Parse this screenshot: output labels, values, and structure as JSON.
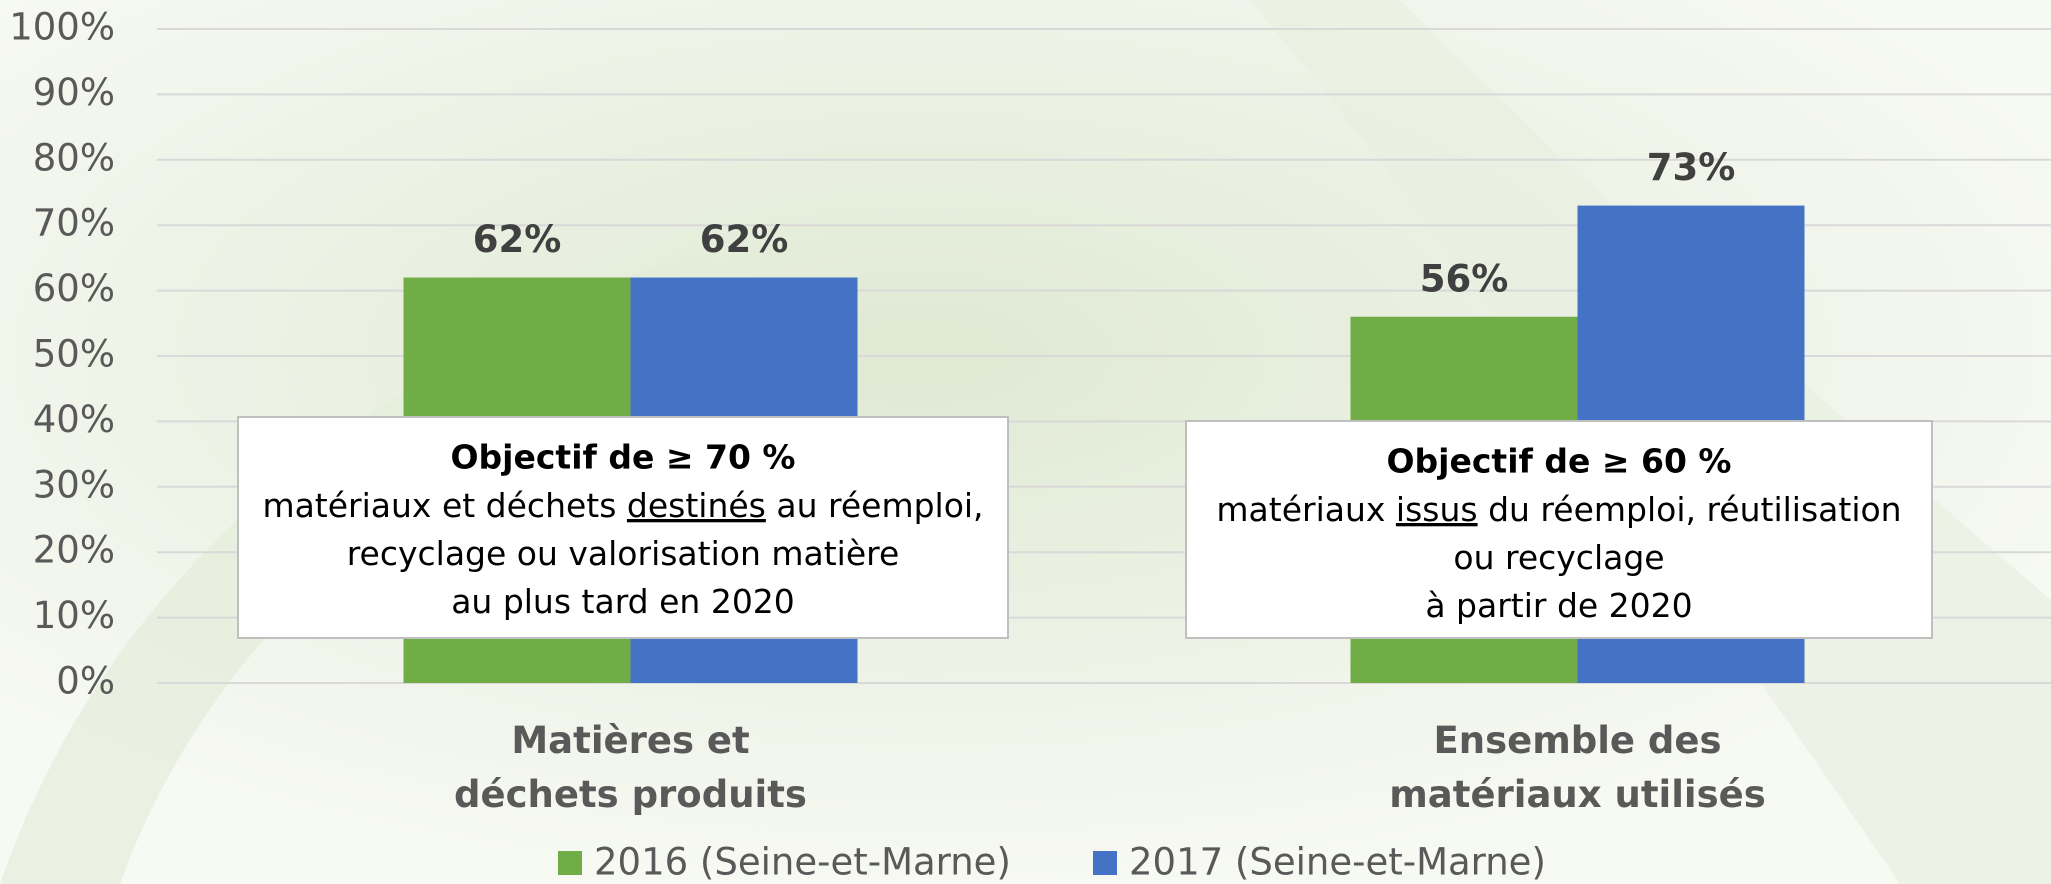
{
  "chart_data": {
    "type": "bar",
    "categories": [
      [
        "Matières et",
        "déchets produits"
      ],
      [
        "Ensemble des",
        "matériaux utilisés"
      ]
    ],
    "series": [
      {
        "name": "2016 (Seine-et-Marne)",
        "color": "#70ad47",
        "values": [
          62,
          56
        ],
        "value_labels": [
          "62%",
          "56%"
        ]
      },
      {
        "name": "2017 (Seine-et-Marne)",
        "color": "#4472c4",
        "values": [
          62,
          73
        ],
        "value_labels": [
          "62%",
          "73%"
        ]
      }
    ],
    "ylim": [
      0,
      100
    ],
    "yticks": [
      {
        "value": 0,
        "label": "0%"
      },
      {
        "value": 10,
        "label": "10%"
      },
      {
        "value": 20,
        "label": "20%"
      },
      {
        "value": 30,
        "label": "30%"
      },
      {
        "value": 40,
        "label": "40%"
      },
      {
        "value": 50,
        "label": "50%"
      },
      {
        "value": 60,
        "label": "60%"
      },
      {
        "value": 70,
        "label": "70%"
      },
      {
        "value": 80,
        "label": "80%"
      },
      {
        "value": 90,
        "label": "90%"
      },
      {
        "value": 100,
        "label": "100%"
      }
    ],
    "grid": true,
    "legend": "bottom",
    "annotations": [
      {
        "title": "Objectif de ≥ 70 %",
        "lines": [
          [
            {
              "text": "matériaux et déchets "
            },
            {
              "text": "destinés",
              "underline": true
            },
            {
              "text": " au réemploi,"
            }
          ],
          [
            {
              "text": "recyclage ou valorisation matière"
            }
          ],
          [
            {
              "text": "au plus tard en 2020"
            }
          ]
        ]
      },
      {
        "title": "Objectif de  ≥ 60 %",
        "lines": [
          [
            {
              "text": "matériaux "
            },
            {
              "text": "issus",
              "underline": true
            },
            {
              "text": " du réemploi, réutilisation"
            }
          ],
          [
            {
              "text": "ou recyclage"
            }
          ],
          [
            {
              "text": "à partir de 2020"
            }
          ]
        ]
      }
    ]
  }
}
